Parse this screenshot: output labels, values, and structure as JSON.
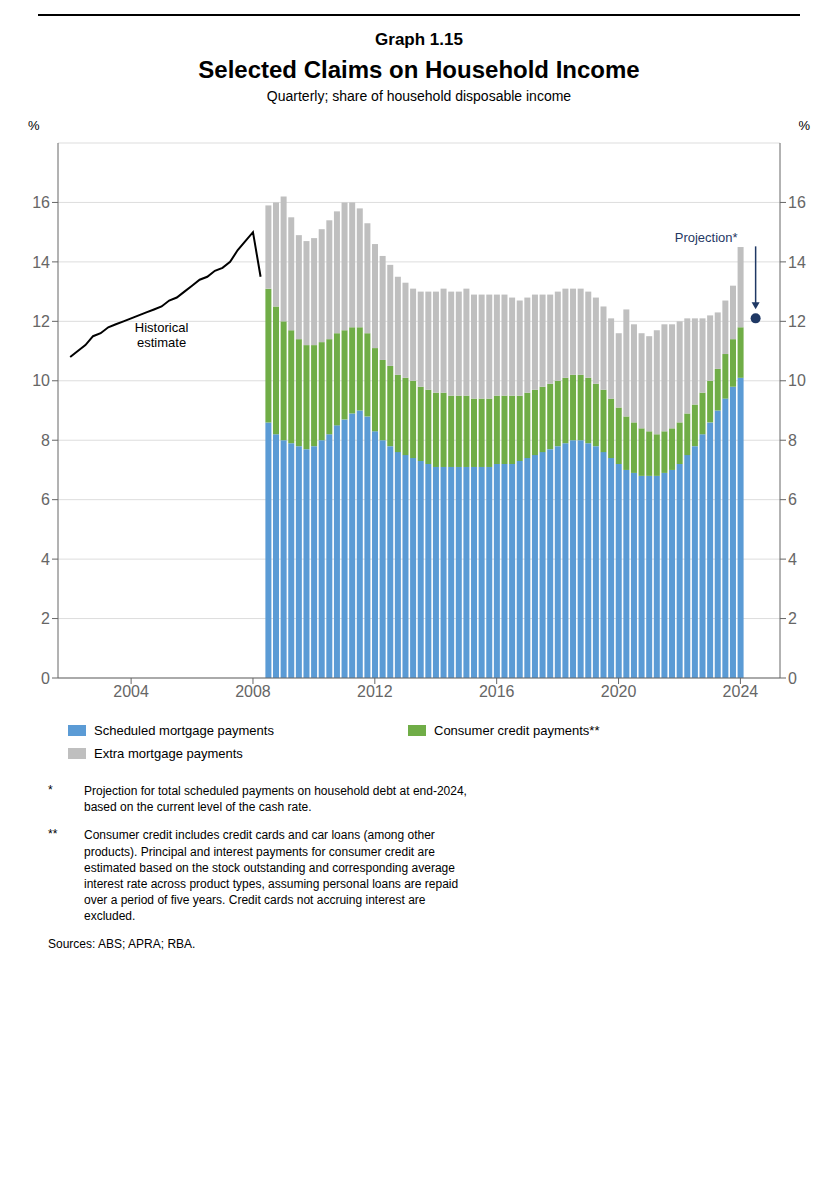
{
  "chart_data": {
    "type": "bar",
    "stacked": true,
    "graph_label": "Graph 1.15",
    "title": "Selected Claims on Household Income",
    "subtitle": "Quarterly; share of household disposable income",
    "ylabel": "%",
    "y2label": "%",
    "xlim": [
      2001.6,
      2025.3
    ],
    "xticks": [
      2004,
      2008,
      2012,
      2016,
      2020,
      2024
    ],
    "ylim": [
      0,
      18
    ],
    "yticks": [
      0,
      2,
      4,
      6,
      8,
      10,
      12,
      14,
      16
    ],
    "y2lim": [
      0,
      18
    ],
    "y2ticks": [
      0,
      2,
      4,
      6,
      8,
      10,
      12,
      14,
      16
    ],
    "grid": true,
    "series": [
      {
        "name": "Scheduled mortgage payments",
        "type": "bar",
        "color": "#5B9BD5",
        "x": [
          2008.5,
          2008.75,
          2009.0,
          2009.25,
          2009.5,
          2009.75,
          2010.0,
          2010.25,
          2010.5,
          2010.75,
          2011.0,
          2011.25,
          2011.5,
          2011.75,
          2012.0,
          2012.25,
          2012.5,
          2012.75,
          2013.0,
          2013.25,
          2013.5,
          2013.75,
          2014.0,
          2014.25,
          2014.5,
          2014.75,
          2015.0,
          2015.25,
          2015.5,
          2015.75,
          2016.0,
          2016.25,
          2016.5,
          2016.75,
          2017.0,
          2017.25,
          2017.5,
          2017.75,
          2018.0,
          2018.25,
          2018.5,
          2018.75,
          2019.0,
          2019.25,
          2019.5,
          2019.75,
          2020.0,
          2020.25,
          2020.5,
          2020.75,
          2021.0,
          2021.25,
          2021.5,
          2021.75,
          2022.0,
          2022.25,
          2022.5,
          2022.75,
          2023.0,
          2023.25,
          2023.5,
          2023.75,
          2024.0
        ],
        "values": [
          8.6,
          8.2,
          8.0,
          7.9,
          7.8,
          7.7,
          7.8,
          8.0,
          8.2,
          8.5,
          8.7,
          8.9,
          9.0,
          8.8,
          8.3,
          8.0,
          7.8,
          7.6,
          7.5,
          7.4,
          7.3,
          7.2,
          7.1,
          7.1,
          7.1,
          7.1,
          7.1,
          7.1,
          7.1,
          7.1,
          7.2,
          7.2,
          7.2,
          7.3,
          7.4,
          7.5,
          7.6,
          7.7,
          7.8,
          7.9,
          8.0,
          8.0,
          7.9,
          7.8,
          7.6,
          7.4,
          7.2,
          7.0,
          6.9,
          6.8,
          6.8,
          6.8,
          6.9,
          7.0,
          7.2,
          7.5,
          7.8,
          8.2,
          8.6,
          9.0,
          9.4,
          9.8,
          10.1
        ]
      },
      {
        "name": "Consumer credit payments**",
        "type": "bar",
        "color": "#70AD47",
        "x": [
          2008.5,
          2008.75,
          2009.0,
          2009.25,
          2009.5,
          2009.75,
          2010.0,
          2010.25,
          2010.5,
          2010.75,
          2011.0,
          2011.25,
          2011.5,
          2011.75,
          2012.0,
          2012.25,
          2012.5,
          2012.75,
          2013.0,
          2013.25,
          2013.5,
          2013.75,
          2014.0,
          2014.25,
          2014.5,
          2014.75,
          2015.0,
          2015.25,
          2015.5,
          2015.75,
          2016.0,
          2016.25,
          2016.5,
          2016.75,
          2017.0,
          2017.25,
          2017.5,
          2017.75,
          2018.0,
          2018.25,
          2018.5,
          2018.75,
          2019.0,
          2019.25,
          2019.5,
          2019.75,
          2020.0,
          2020.25,
          2020.5,
          2020.75,
          2021.0,
          2021.25,
          2021.5,
          2021.75,
          2022.0,
          2022.25,
          2022.5,
          2022.75,
          2023.0,
          2023.25,
          2023.5,
          2023.75,
          2024.0
        ],
        "values": [
          4.5,
          4.3,
          4.0,
          3.8,
          3.6,
          3.5,
          3.4,
          3.3,
          3.2,
          3.1,
          3.0,
          2.9,
          2.8,
          2.8,
          2.8,
          2.7,
          2.7,
          2.6,
          2.6,
          2.6,
          2.5,
          2.5,
          2.5,
          2.5,
          2.4,
          2.4,
          2.4,
          2.3,
          2.3,
          2.3,
          2.3,
          2.3,
          2.3,
          2.2,
          2.2,
          2.2,
          2.2,
          2.2,
          2.2,
          2.2,
          2.2,
          2.2,
          2.2,
          2.1,
          2.1,
          2.0,
          1.9,
          1.8,
          1.7,
          1.6,
          1.5,
          1.4,
          1.4,
          1.4,
          1.4,
          1.4,
          1.4,
          1.4,
          1.4,
          1.4,
          1.5,
          1.6,
          1.7
        ]
      },
      {
        "name": "Extra mortgage payments",
        "type": "bar",
        "color": "#BFBFBF",
        "x": [
          2008.5,
          2008.75,
          2009.0,
          2009.25,
          2009.5,
          2009.75,
          2010.0,
          2010.25,
          2010.5,
          2010.75,
          2011.0,
          2011.25,
          2011.5,
          2011.75,
          2012.0,
          2012.25,
          2012.5,
          2012.75,
          2013.0,
          2013.25,
          2013.5,
          2013.75,
          2014.0,
          2014.25,
          2014.5,
          2014.75,
          2015.0,
          2015.25,
          2015.5,
          2015.75,
          2016.0,
          2016.25,
          2016.5,
          2016.75,
          2017.0,
          2017.25,
          2017.5,
          2017.75,
          2018.0,
          2018.25,
          2018.5,
          2018.75,
          2019.0,
          2019.25,
          2019.5,
          2019.75,
          2020.0,
          2020.25,
          2020.5,
          2020.75,
          2021.0,
          2021.25,
          2021.5,
          2021.75,
          2022.0,
          2022.25,
          2022.5,
          2022.75,
          2023.0,
          2023.25,
          2023.5,
          2023.75,
          2024.0
        ],
        "values": [
          2.8,
          3.5,
          4.2,
          3.8,
          3.5,
          3.5,
          3.6,
          3.8,
          4.0,
          4.1,
          4.3,
          4.2,
          4.0,
          3.7,
          3.5,
          3.5,
          3.4,
          3.3,
          3.2,
          3.1,
          3.2,
          3.3,
          3.4,
          3.5,
          3.5,
          3.5,
          3.6,
          3.5,
          3.5,
          3.5,
          3.4,
          3.4,
          3.3,
          3.2,
          3.2,
          3.2,
          3.1,
          3.0,
          3.0,
          3.0,
          2.9,
          2.9,
          2.9,
          2.9,
          2.8,
          2.7,
          2.5,
          3.6,
          3.3,
          3.2,
          3.2,
          3.5,
          3.6,
          3.5,
          3.4,
          3.2,
          2.9,
          2.5,
          2.2,
          1.9,
          1.8,
          1.8,
          2.7
        ]
      },
      {
        "type": "line",
        "color": "#000000",
        "label": "Historical\nestimate",
        "x": [
          2002.0,
          2002.25,
          2002.5,
          2002.75,
          2003.0,
          2003.25,
          2003.5,
          2003.75,
          2004.0,
          2004.25,
          2004.5,
          2004.75,
          2005.0,
          2005.25,
          2005.5,
          2005.75,
          2006.0,
          2006.25,
          2006.5,
          2006.75,
          2007.0,
          2007.25,
          2007.5,
          2007.75,
          2008.0,
          2008.25
        ],
        "values": [
          10.8,
          11.0,
          11.2,
          11.5,
          11.6,
          11.8,
          11.9,
          12.0,
          12.1,
          12.2,
          12.3,
          12.4,
          12.5,
          12.7,
          12.8,
          13.0,
          13.2,
          13.4,
          13.5,
          13.7,
          13.8,
          14.0,
          14.4,
          14.7,
          15.0,
          13.5
        ]
      },
      {
        "type": "scatter",
        "marker": "circle",
        "color": "#1F3864",
        "label": "Projection*",
        "x": [
          2024.5
        ],
        "values": [
          12.1
        ]
      }
    ],
    "footnotes": [
      {
        "mark": "*",
        "text": "Projection for total scheduled payments on household debt at end-2024,\nbased on the current level of the cash rate."
      },
      {
        "mark": "**",
        "text": "Consumer credit includes credit cards and car loans (among other\nproducts). Principal and interest payments for consumer credit are\nestimated based on the stock outstanding and corresponding average\ninterest rate across product types, assuming personal loans are repaid\nover a period of five years. Credit cards not accruing interest are\nexcluded."
      }
    ],
    "sources": "Sources: ABS; APRA; RBA."
  }
}
